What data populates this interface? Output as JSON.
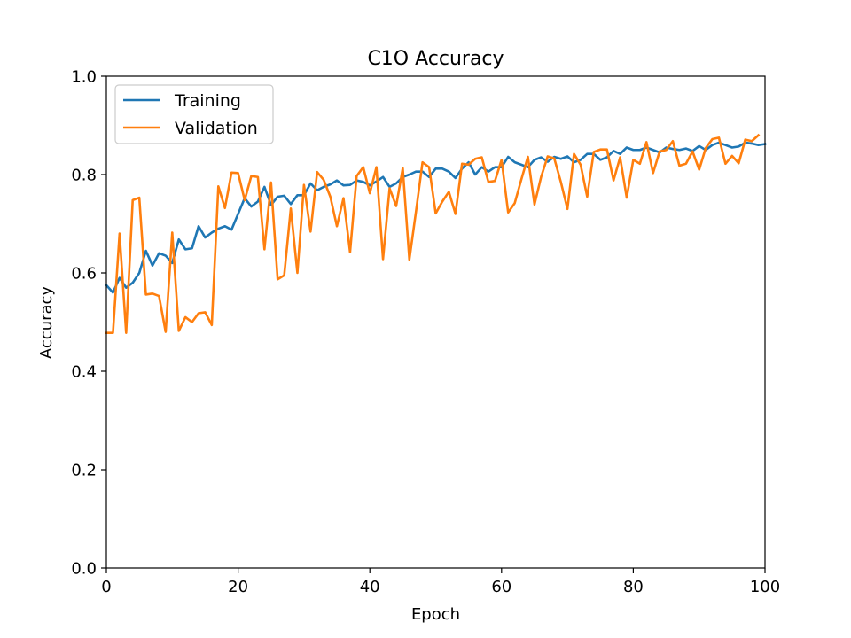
{
  "chart_data": {
    "type": "line",
    "title": "C1O Accuracy",
    "xlabel": "Epoch",
    "ylabel": "Accuracy",
    "xlim": [
      0,
      100
    ],
    "ylim": [
      0.0,
      1.0
    ],
    "xticks": [
      "0",
      "20",
      "40",
      "60",
      "80",
      "100"
    ],
    "yticks": [
      "0.0",
      "0.2",
      "0.4",
      "0.6",
      "0.8",
      "1.0"
    ],
    "grid": false,
    "legend": "upper-left",
    "series": [
      {
        "name": "Training",
        "color": "#1f77b4",
        "values": [
          0.575,
          0.56,
          0.59,
          0.57,
          0.58,
          0.6,
          0.645,
          0.615,
          0.64,
          0.635,
          0.62,
          0.668,
          0.648,
          0.65,
          0.695,
          0.672,
          0.682,
          0.69,
          0.695,
          0.688,
          0.72,
          0.752,
          0.735,
          0.745,
          0.775,
          0.738,
          0.755,
          0.757,
          0.74,
          0.758,
          0.758,
          0.782,
          0.768,
          0.775,
          0.78,
          0.788,
          0.778,
          0.779,
          0.788,
          0.785,
          0.778,
          0.786,
          0.795,
          0.775,
          0.782,
          0.795,
          0.8,
          0.806,
          0.806,
          0.795,
          0.812,
          0.812,
          0.806,
          0.793,
          0.812,
          0.825,
          0.8,
          0.815,
          0.806,
          0.815,
          0.815,
          0.836,
          0.825,
          0.82,
          0.815,
          0.83,
          0.835,
          0.826,
          0.836,
          0.832,
          0.837,
          0.825,
          0.83,
          0.842,
          0.842,
          0.83,
          0.835,
          0.848,
          0.842,
          0.855,
          0.85,
          0.85,
          0.855,
          0.85,
          0.845,
          0.855,
          0.852,
          0.85,
          0.853,
          0.848,
          0.858,
          0.85,
          0.86,
          0.865,
          0.86,
          0.855,
          0.857,
          0.865,
          0.863,
          0.86,
          0.862
        ]
      },
      {
        "name": "Validation",
        "color": "#ff7f0e",
        "values": [
          0.478,
          0.478,
          0.68,
          0.478,
          0.748,
          0.753,
          0.556,
          0.558,
          0.553,
          0.48,
          0.682,
          0.482,
          0.51,
          0.5,
          0.518,
          0.52,
          0.494,
          0.776,
          0.732,
          0.804,
          0.803,
          0.748,
          0.797,
          0.795,
          0.648,
          0.784,
          0.587,
          0.595,
          0.731,
          0.6,
          0.779,
          0.684,
          0.805,
          0.789,
          0.755,
          0.695,
          0.752,
          0.642,
          0.797,
          0.815,
          0.762,
          0.815,
          0.628,
          0.772,
          0.736,
          0.813,
          0.627,
          0.724,
          0.825,
          0.815,
          0.721,
          0.745,
          0.765,
          0.72,
          0.822,
          0.82,
          0.832,
          0.835,
          0.785,
          0.787,
          0.83,
          0.723,
          0.742,
          0.79,
          0.836,
          0.739,
          0.795,
          0.837,
          0.833,
          0.785,
          0.73,
          0.842,
          0.82,
          0.755,
          0.846,
          0.851,
          0.851,
          0.788,
          0.835,
          0.753,
          0.83,
          0.822,
          0.866,
          0.803,
          0.847,
          0.85,
          0.868,
          0.818,
          0.822,
          0.847,
          0.81,
          0.854,
          0.872,
          0.875,
          0.822,
          0.838,
          0.823,
          0.871,
          0.868,
          0.88
        ]
      }
    ]
  }
}
